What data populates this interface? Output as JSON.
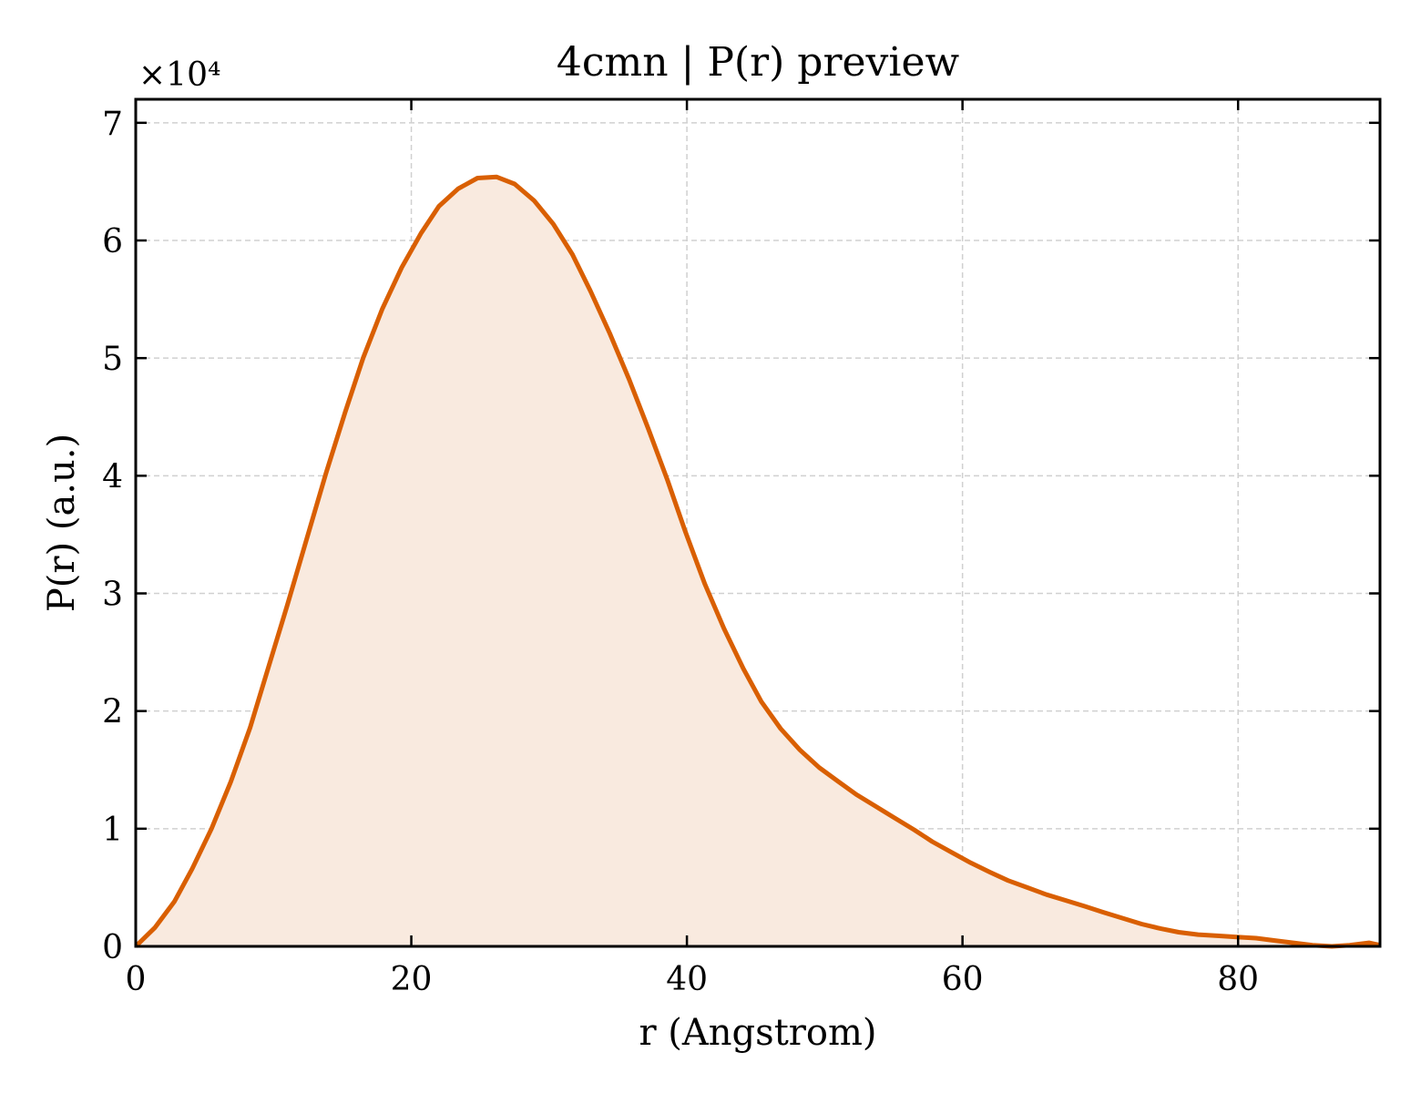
{
  "chart_data": {
    "type": "area",
    "title": "4cmn | P(r) preview",
    "xlabel": "r (Angstrom)",
    "ylabel": "P(r) (a.u.)",
    "y_multiplier_label": "×10⁴",
    "xlim": [
      0,
      90.3
    ],
    "ylim": [
      0,
      7.2
    ],
    "y_scale_exponent": 4,
    "xticks": [
      0,
      20,
      40,
      60,
      80
    ],
    "yticks": [
      0,
      1,
      2,
      3,
      4,
      5,
      6,
      7
    ],
    "grid": true,
    "legend": "none",
    "colors": {
      "line": "#d95f02",
      "fill": "#f9eadf",
      "grid": "#d0d0d0"
    },
    "series": [
      {
        "x": [
          0,
          1.4,
          2.8,
          4.1,
          5.5,
          6.9,
          8.3,
          9.6,
          11.0,
          12.4,
          13.8,
          15.2,
          16.5,
          17.9,
          19.3,
          20.7,
          22.0,
          23.4,
          24.8,
          26.2,
          27.5,
          28.9,
          30.3,
          31.7,
          33.0,
          34.4,
          35.8,
          37.2,
          38.6,
          39.9,
          41.3,
          42.7,
          44.1,
          45.4,
          46.8,
          48.2,
          49.6,
          51.0,
          52.3,
          53.7,
          55.1,
          56.5,
          57.8,
          59.2,
          60.6,
          62.0,
          63.3,
          64.7,
          66.1,
          67.5,
          68.9,
          70.2,
          71.6,
          73.0,
          74.4,
          75.7,
          77.1,
          78.5,
          79.9,
          81.3,
          82.6,
          84.0,
          85.4,
          86.8,
          88.1,
          89.5,
          90.3
        ],
        "y": [
          0,
          0.16,
          0.38,
          0.66,
          1.0,
          1.4,
          1.86,
          2.36,
          2.9,
          3.46,
          4.02,
          4.54,
          5.0,
          5.42,
          5.77,
          6.06,
          6.29,
          6.44,
          6.53,
          6.54,
          6.48,
          6.34,
          6.14,
          5.88,
          5.57,
          5.21,
          4.82,
          4.4,
          3.96,
          3.52,
          3.08,
          2.7,
          2.36,
          2.08,
          1.85,
          1.67,
          1.52,
          1.4,
          1.29,
          1.19,
          1.09,
          0.99,
          0.89,
          0.8,
          0.71,
          0.63,
          0.56,
          0.5,
          0.44,
          0.39,
          0.34,
          0.29,
          0.24,
          0.19,
          0.15,
          0.12,
          0.1,
          0.09,
          0.08,
          0.07,
          0.05,
          0.03,
          0.01,
          0.0,
          0.01,
          0.03,
          0.01
        ]
      }
    ]
  }
}
